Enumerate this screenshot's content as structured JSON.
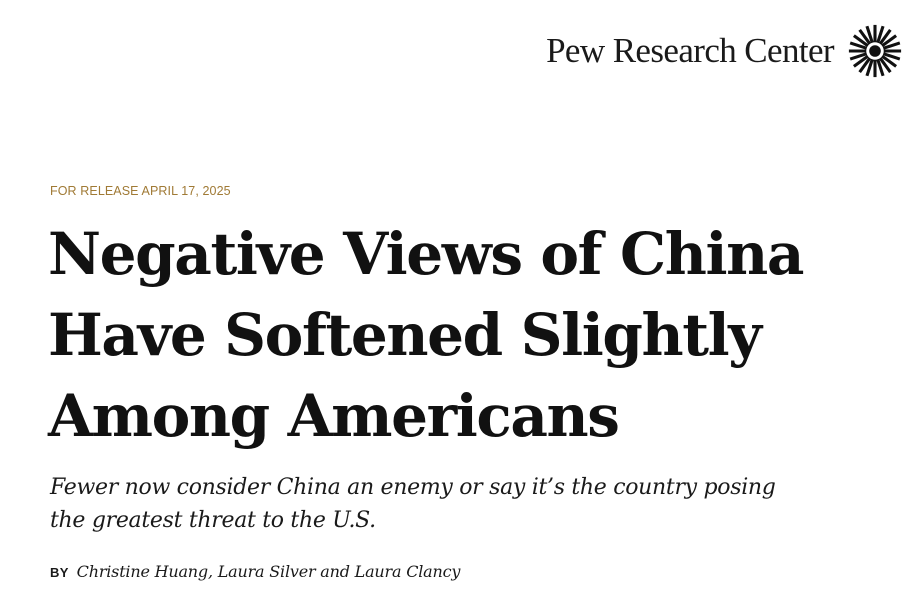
{
  "brand": {
    "name": "Pew Research Center",
    "logo_icon": "sunburst-logo-icon",
    "color": "#111111"
  },
  "release": {
    "text": "FOR RELEASE APRIL 17, 2025",
    "color": "#a07a35"
  },
  "headline": {
    "lines": [
      "Negative Views of China",
      "Have Softened Slightly",
      "Among Americans"
    ]
  },
  "dek": {
    "lines": [
      "Fewer now consider China an enemy or say it’s the country posing",
      "the greatest threat to the U.S."
    ]
  },
  "byline": {
    "label": "BY",
    "authors": "Christine Huang, Laura Silver and Laura Clancy"
  }
}
